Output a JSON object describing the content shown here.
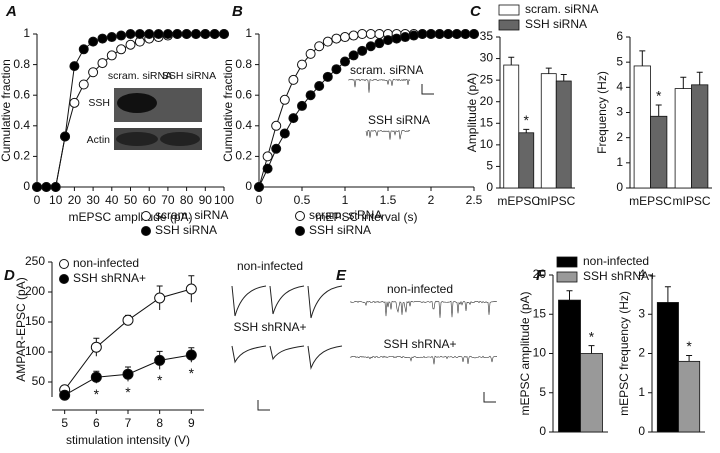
{
  "chart_data": [
    {
      "type": "line",
      "label": "A",
      "ylabel": "Cumulative fraction",
      "xlabel": "mEPSC amplitude (pA)",
      "x": [
        0,
        5,
        10,
        15,
        20,
        25,
        30,
        35,
        40,
        45,
        50,
        55,
        60,
        65,
        70,
        75,
        80,
        85,
        90,
        95,
        100
      ],
      "xlim": [
        0,
        100
      ],
      "xticks": [
        0,
        10,
        20,
        30,
        40,
        50,
        60,
        70,
        80,
        90,
        100
      ],
      "ylim": [
        0,
        1
      ],
      "yticks": [
        0,
        0.2,
        0.4,
        0.6,
        0.8,
        1
      ],
      "series": [
        {
          "name": "scram. siRNA",
          "color": "#ffffff",
          "values": [
            0,
            0,
            0,
            0.33,
            0.55,
            0.67,
            0.75,
            0.81,
            0.86,
            0.9,
            0.93,
            0.95,
            0.97,
            0.98,
            0.99,
            1,
            1,
            1,
            1,
            1,
            1
          ]
        },
        {
          "name": "SSH siRNA",
          "color": "#000000",
          "values": [
            0,
            0,
            0,
            0.33,
            0.79,
            0.9,
            0.95,
            0.97,
            0.98,
            0.99,
            1,
            1,
            1,
            1,
            1,
            1,
            1,
            1,
            1,
            1,
            1
          ]
        }
      ],
      "legend": "lower right",
      "inset_labels": [
        "scram. siRNA",
        "SSH siRNA",
        "SSH",
        "Actin"
      ]
    },
    {
      "type": "line",
      "label": "B",
      "ylabel": "Cumulative fraction",
      "xlabel": "mEPSC interval (s)",
      "x": [
        0,
        0.1,
        0.2,
        0.3,
        0.4,
        0.5,
        0.6,
        0.7,
        0.8,
        0.9,
        1,
        1.1,
        1.2,
        1.3,
        1.4,
        1.5,
        1.6,
        1.7,
        1.8,
        1.9,
        2,
        2.1,
        2.2,
        2.3,
        2.4,
        2.5
      ],
      "xlim": [
        0,
        2.5
      ],
      "xticks": [
        0,
        0.5,
        1,
        1.5,
        2,
        2.5
      ],
      "ylim": [
        0,
        1
      ],
      "yticks": [
        0,
        0.2,
        0.4,
        0.6,
        0.8,
        1
      ],
      "series": [
        {
          "name": "scram. siRNA",
          "color": "#ffffff",
          "values": [
            0,
            0.2,
            0.4,
            0.57,
            0.7,
            0.8,
            0.87,
            0.92,
            0.95,
            0.97,
            0.98,
            0.99,
            1,
            1,
            1,
            1,
            1,
            1,
            1,
            1,
            1,
            1,
            1,
            1,
            1,
            1
          ]
        },
        {
          "name": "SSH siRNA",
          "color": "#000000",
          "values": [
            0,
            0.12,
            0.25,
            0.35,
            0.45,
            0.53,
            0.6,
            0.66,
            0.72,
            0.77,
            0.82,
            0.86,
            0.89,
            0.92,
            0.94,
            0.96,
            0.97,
            0.98,
            0.99,
            1,
            1,
            1,
            1,
            1,
            1,
            1
          ]
        }
      ],
      "legend": "lower right",
      "inset_labels": [
        "scram. siRNA",
        "SSH siRNA"
      ]
    },
    {
      "type": "bar",
      "label": "C",
      "ylabel": "Amplitude (pA)",
      "categories": [
        "mEPSC",
        "mIPSC"
      ],
      "ylim": [
        0,
        35
      ],
      "yticks": [
        0,
        5,
        10,
        15,
        20,
        25,
        30,
        35
      ],
      "series": [
        {
          "name": "scram. siRNA",
          "color": "#ffffff",
          "values": [
            28.5,
            26.5
          ],
          "errors": [
            1.8,
            1.3
          ],
          "annotations": [
            null,
            null
          ]
        },
        {
          "name": "SSH siRNA",
          "color": "#666666",
          "values": [
            12.8,
            24.8
          ],
          "errors": [
            0.8,
            1.5
          ],
          "annotations": [
            "*",
            null
          ]
        }
      ],
      "legend": "top"
    },
    {
      "type": "bar",
      "ylabel": "Frequency (Hz)",
      "categories": [
        "mEPSC",
        "mIPSC"
      ],
      "ylim": [
        0,
        6
      ],
      "yticks": [
        0,
        1,
        2,
        3,
        4,
        5,
        6
      ],
      "series": [
        {
          "color": "#ffffff",
          "values": [
            4.85,
            3.95
          ],
          "errors": [
            0.6,
            0.45
          ],
          "annotations": [
            null,
            null
          ]
        },
        {
          "color": "#666666",
          "values": [
            2.85,
            4.1
          ],
          "errors": [
            0.45,
            0.5
          ],
          "annotations": [
            "*",
            null
          ]
        }
      ]
    },
    {
      "type": "line",
      "label": "D",
      "ylabel": "AMPAR-EPSC (pA)",
      "xlabel": "stimulation intensity (V)",
      "x": [
        5,
        6,
        7,
        8,
        9
      ],
      "xlim": [
        4.6,
        9.4
      ],
      "xticks": [
        5,
        6,
        7,
        8,
        9
      ],
      "ylim": [
        25,
        250
      ],
      "yticks": [
        50,
        100,
        150,
        200,
        250
      ],
      "series": [
        {
          "name": "non-infected",
          "color": "#ffffff",
          "values": [
            37,
            108,
            153,
            190,
            205
          ],
          "errors": [
            3,
            15,
            8,
            20,
            22
          ],
          "annotations": [
            null,
            null,
            null,
            null,
            null
          ]
        },
        {
          "name": "SSH shRNA+",
          "color": "#000000",
          "values": [
            28,
            58,
            63,
            86,
            95
          ],
          "errors": [
            2,
            10,
            12,
            15,
            12
          ],
          "annotations": [
            null,
            "*",
            "*",
            "*",
            "*"
          ]
        }
      ],
      "legend": "upper left",
      "inset_labels": [
        "non-infected",
        "SSH shRNA+"
      ]
    },
    {
      "type": "traces",
      "label": "E",
      "inset_labels": [
        "non-infected",
        "SSH shRNA+"
      ]
    },
    {
      "type": "bar",
      "label": "F",
      "ylabel": "mEPSC amplitude (pA)",
      "categories": [
        null
      ],
      "ylim": [
        0,
        20
      ],
      "yticks": [
        0,
        5,
        10,
        15,
        20
      ],
      "series": [
        {
          "name": "non-infected",
          "color": "#000000",
          "values": [
            16.8
          ],
          "errors": [
            1.2
          ],
          "annotations": [
            null
          ]
        },
        {
          "name": "SSH shRNA+",
          "color": "#999999",
          "values": [
            10
          ],
          "errors": [
            1
          ],
          "annotations": [
            "*"
          ]
        }
      ],
      "legend": "top"
    },
    {
      "type": "bar",
      "ylabel": "mEPSC frequency (Hz)",
      "categories": [
        null
      ],
      "ylim": [
        0,
        4
      ],
      "yticks": [
        0,
        1,
        2,
        3,
        4
      ],
      "series": [
        {
          "color": "#000000",
          "values": [
            3.3
          ],
          "errors": [
            0.4
          ],
          "annotations": [
            null
          ]
        },
        {
          "color": "#999999",
          "values": [
            1.8
          ],
          "errors": [
            0.15
          ],
          "annotations": [
            "*"
          ]
        }
      ]
    }
  ]
}
